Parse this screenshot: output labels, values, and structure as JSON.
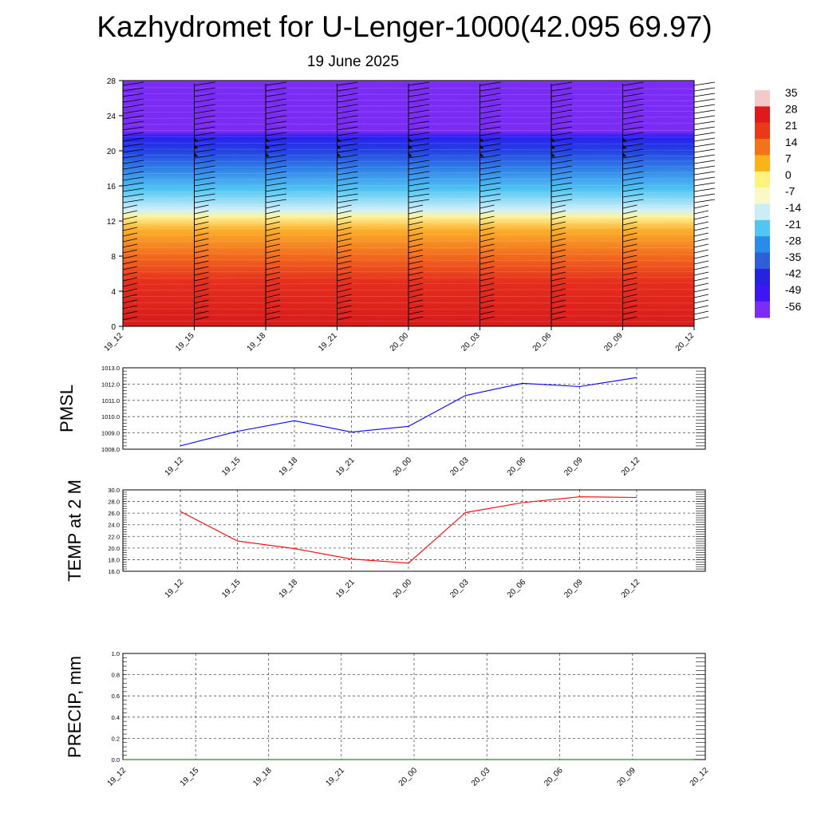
{
  "title": "Kazhydromet for U-Lenger-1000(42.095 69.97)",
  "subtitle": "19 June 2025",
  "time_labels": [
    "19_12",
    "19_15",
    "19_18",
    "19_21",
    "20_00",
    "20_03",
    "20_06",
    "20_09",
    "20_12"
  ],
  "chart_data": [
    {
      "type": "heatmap",
      "ylim": [
        0,
        28
      ],
      "yticks": [
        "0",
        "4",
        "8",
        "12",
        "16",
        "20",
        "24",
        "28"
      ],
      "x": [
        "19_12",
        "19_15",
        "19_18",
        "19_21",
        "20_00",
        "20_03",
        "20_06",
        "20_09",
        "20_12"
      ],
      "description_levels": "temperature by height with wind barbs",
      "colorbar_labels": [
        "35",
        "28",
        "21",
        "14",
        "7",
        "0",
        "-7",
        "-14",
        "-21",
        "-28",
        "-35",
        "-42",
        "-49",
        "-56"
      ],
      "colorbar_colors": [
        "#f3c9c9",
        "#e01a1a",
        "#e83a1a",
        "#f2741a",
        "#fbb31a",
        "#fef37e",
        "#f9f9c8",
        "#c9eef8",
        "#52c6f1",
        "#2b8ce8",
        "#2f5fd8",
        "#2523dd",
        "#3d17f0",
        "#7b2cf5"
      ],
      "level_colors": [
        {
          "h": 0,
          "color": "#d81b1b"
        },
        {
          "h": 5,
          "color": "#e52d1d"
        },
        {
          "h": 8,
          "color": "#f26a1d"
        },
        {
          "h": 11,
          "color": "#fbb02a"
        },
        {
          "h": 12.5,
          "color": "#fef49a"
        },
        {
          "h": 13.3,
          "color": "#cfeffa"
        },
        {
          "h": 15.5,
          "color": "#53c7f2"
        },
        {
          "h": 18,
          "color": "#2f7fe8"
        },
        {
          "h": 20,
          "color": "#2341e2"
        },
        {
          "h": 21.6,
          "color": "#2a1ff0"
        },
        {
          "h": 22.2,
          "color": "#7a2cf4"
        },
        {
          "h": 28,
          "color": "#7a2cf4"
        }
      ]
    },
    {
      "type": "line",
      "ylabel": "PMSL",
      "ylim": [
        1008.0,
        1013.0
      ],
      "yticks": [
        "1008.0",
        "1009.0",
        "1010.0",
        "1011.0",
        "1012.0",
        "1013.0"
      ],
      "x": [
        "19_12",
        "19_15",
        "19_18",
        "19_21",
        "20_00",
        "20_03",
        "20_06",
        "20_09",
        "20_12"
      ],
      "series": [
        {
          "values": [
            1008.2,
            1009.1,
            1009.75,
            1009.05,
            1009.4,
            1011.3,
            1012.05,
            1011.85,
            1012.4
          ],
          "color": "#0000ff"
        }
      ],
      "grid": true
    },
    {
      "type": "line",
      "ylabel": "TEMP at 2 M",
      "ylim": [
        16.0,
        30.0
      ],
      "yticks": [
        "16.0",
        "18.0",
        "20.0",
        "22.0",
        "24.0",
        "26.0",
        "28.0",
        "30.0"
      ],
      "x": [
        "19_12",
        "19_15",
        "19_18",
        "19_21",
        "20_00",
        "20_03",
        "20_06",
        "20_09",
        "20_12"
      ],
      "series": [
        {
          "values": [
            26.3,
            21.2,
            19.9,
            18.1,
            17.4,
            26.1,
            27.8,
            28.8,
            28.7
          ],
          "color": "#ff0000"
        }
      ],
      "grid": true
    },
    {
      "type": "line",
      "ylabel": "PRECIP, mm",
      "ylim": [
        0.0,
        1.0
      ],
      "yticks": [
        "0.0",
        "0.2",
        "0.4",
        "0.6",
        "0.8",
        "1.0"
      ],
      "x": [
        "19_12",
        "19_15",
        "19_18",
        "19_21",
        "20_00",
        "20_03",
        "20_06",
        "20_09",
        "20_12"
      ],
      "series": [
        {
          "values": [
            0,
            0,
            0,
            0,
            0,
            0,
            0,
            0,
            0
          ],
          "color": "#006400"
        }
      ],
      "grid": true
    }
  ]
}
